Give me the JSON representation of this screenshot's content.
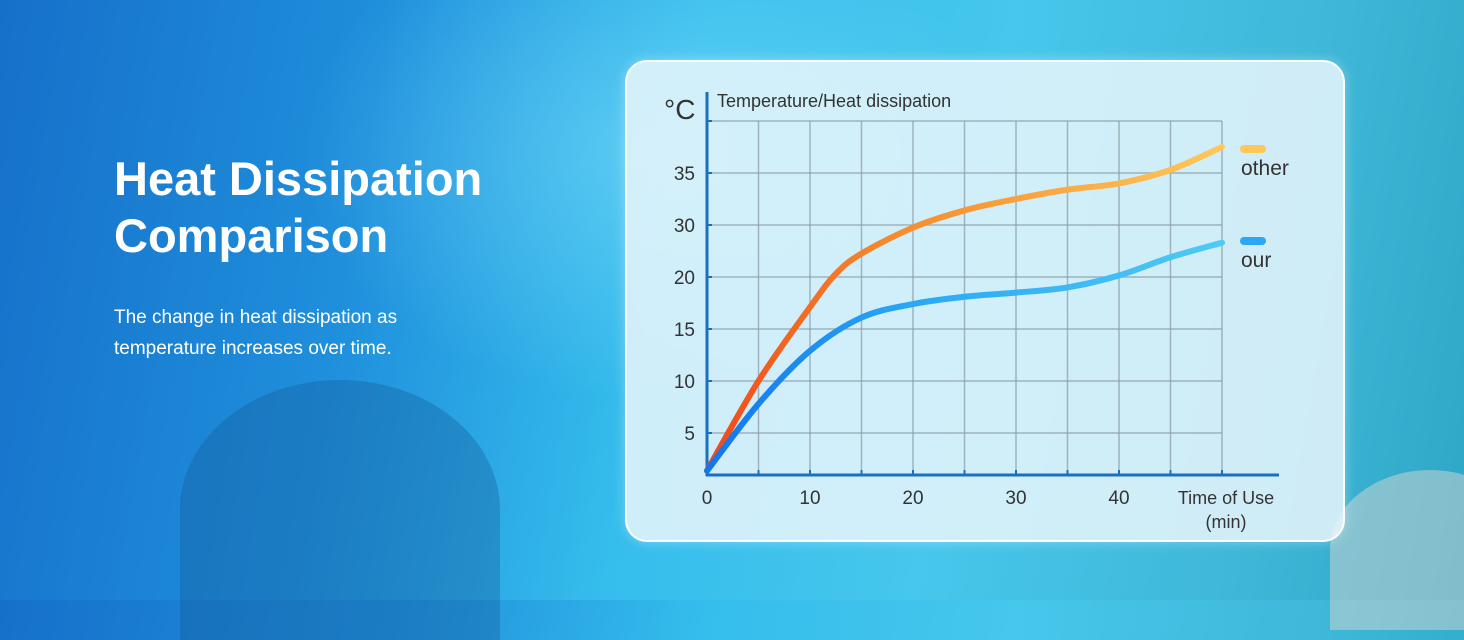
{
  "headline": {
    "line1": "Heat Dissipation",
    "line2": "Comparison"
  },
  "subtitle": {
    "line1": "The change in heat dissipation as",
    "line2": "temperature increases over time."
  },
  "colors": {
    "axis": "#1a6fc0",
    "grid": "#8a9aa6",
    "other_start": "#f0481a",
    "other_end": "#ffc75a",
    "our_start": "#1275ee",
    "our_end": "#4fcaf5"
  },
  "chart_data": {
    "type": "line",
    "title": "Temperature/Heat dissipation",
    "ylabel": "°C",
    "xlabel_line1": "Time of Use",
    "xlabel_line2": "(min)",
    "x_ticks": [
      "0",
      "10",
      "20",
      "30",
      "40"
    ],
    "x_tick_values": [
      0,
      10,
      20,
      30,
      40
    ],
    "y_ticks": [
      "5",
      "10",
      "15",
      "20",
      "30",
      "35"
    ],
    "y_tick_values": [
      5,
      10,
      15,
      20,
      30,
      35
    ],
    "y_scale": "non-uniform (labels equally spaced)",
    "xlim": [
      0,
      55
    ],
    "grid": true,
    "legend_position": "right",
    "series": [
      {
        "name": "other",
        "color": "#f36a22",
        "x": [
          0,
          5,
          10,
          12.5,
          15,
          20,
          25,
          30,
          35,
          40,
          45,
          50
        ],
        "y": [
          0.5,
          10,
          17.1,
          20.6,
          24.5,
          29.5,
          31.4,
          32.5,
          33.4,
          34,
          35.3,
          37.5
        ]
      },
      {
        "name": "our",
        "color": "#1f95f2",
        "x": [
          0,
          5,
          10,
          15,
          20,
          25,
          30,
          35,
          40,
          45,
          50
        ],
        "y": [
          0.5,
          7.8,
          12.9,
          16.1,
          17.4,
          18.1,
          18.5,
          19.0,
          20.3,
          23.8,
          26.6
        ]
      }
    ]
  }
}
